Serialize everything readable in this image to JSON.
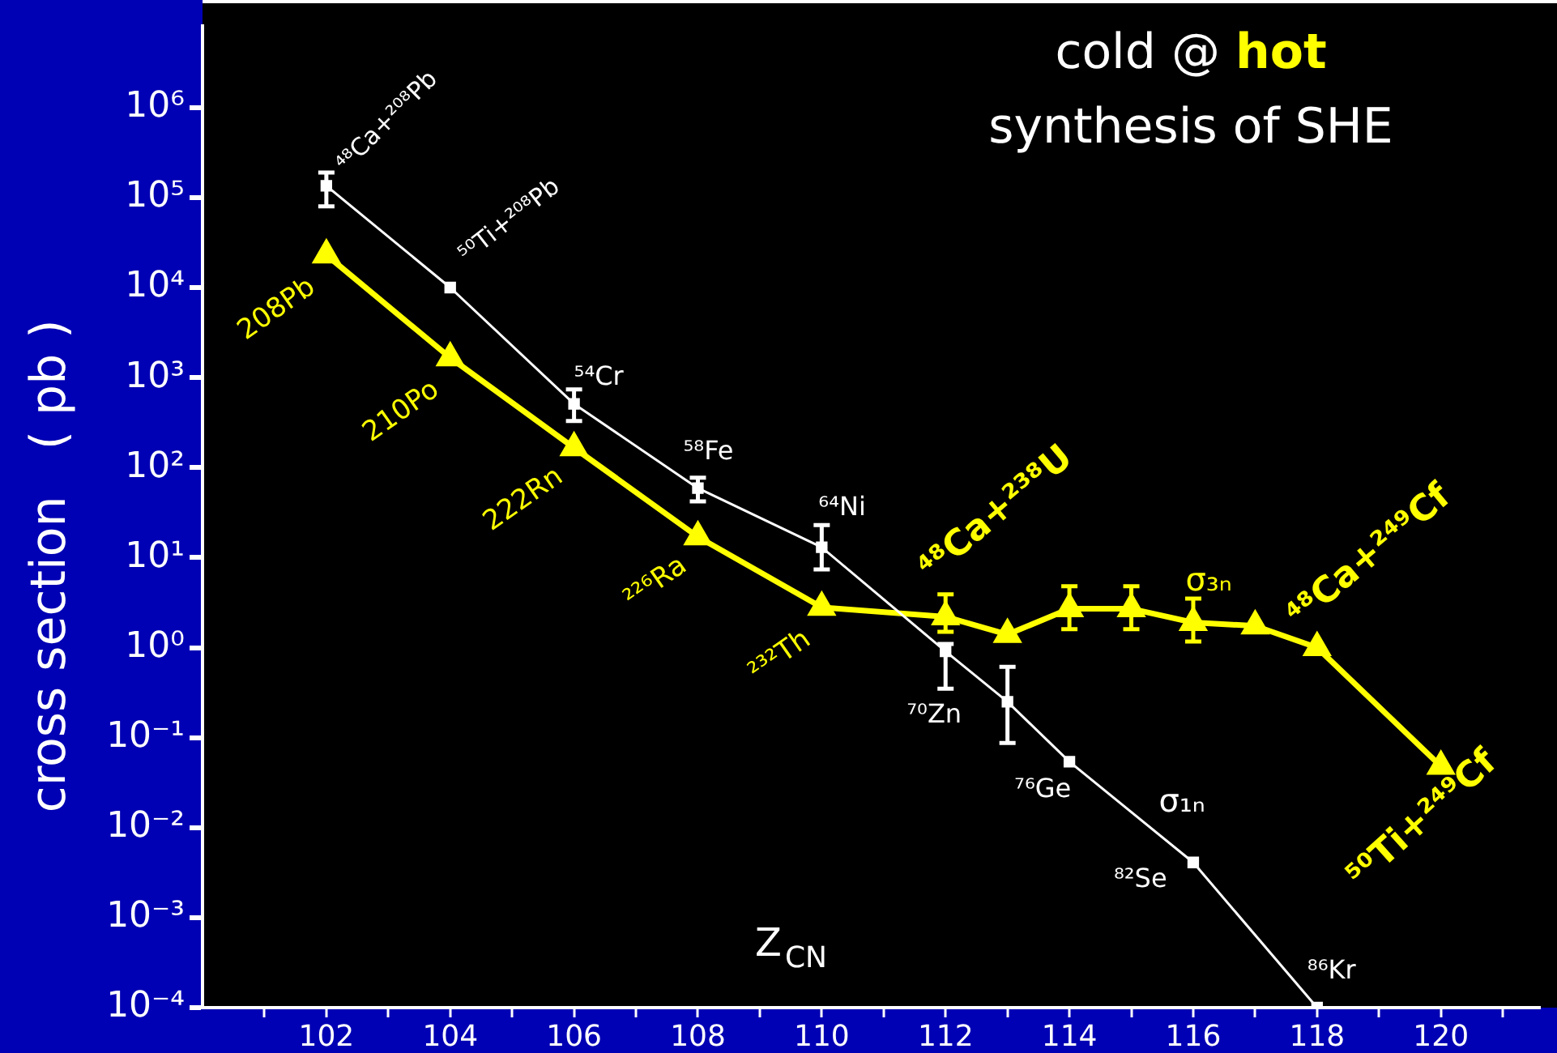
{
  "chart_data": {
    "type": "line",
    "title": "cold @ hot",
    "subtitle": "synthesis of SHE",
    "xlabel": "Z$_{CN}$",
    "ylabel": "cross section   ( pb )",
    "log": "y",
    "grid": false,
    "legend": false,
    "xlim": [
      100,
      121.6
    ],
    "xticks": [
      {
        "value": 101,
        "label": null
      },
      102,
      {
        "value": 103,
        "label": null
      },
      104,
      {
        "value": 105,
        "label": null
      },
      106,
      {
        "value": 107,
        "label": null
      },
      108,
      {
        "value": 109,
        "label": null
      },
      110,
      {
        "value": 111,
        "label": null
      },
      112,
      {
        "value": 113,
        "label": null
      },
      114,
      {
        "value": 115,
        "label": null
      },
      116,
      {
        "value": 117,
        "label": null
      },
      118,
      {
        "value": 119,
        "label": null
      },
      120,
      {
        "value": 121,
        "label": null
      }
    ],
    "ylim": [
      0.0001,
      8000000
    ],
    "yticks": [
      {
        "value": 0.0001,
        "label": "10⁻⁴"
      },
      {
        "value": 0.001,
        "label": "10⁻³"
      },
      {
        "value": 0.01,
        "label": "10⁻²"
      },
      {
        "value": 0.1,
        "label": "10⁻¹"
      },
      {
        "value": 1,
        "label": "10⁰"
      },
      {
        "value": 10,
        "label": "10¹"
      },
      {
        "value": 100,
        "label": "10²"
      },
      {
        "value": 1000,
        "label": "10³"
      },
      {
        "value": 10000,
        "label": "10⁴"
      },
      {
        "value": 100000,
        "label": "10⁵"
      },
      {
        "value": 1000000,
        "label": "10⁶"
      }
    ],
    "series": [
      {
        "name": "σ₁ₙ",
        "color": "#ffffff",
        "marker": "square",
        "x": [
          102,
          104,
          106,
          108,
          110,
          112,
          113,
          114,
          116,
          118
        ],
        "values": [
          135000,
          10000,
          510,
          59,
          13,
          0.91,
          0.25,
          0.054,
          0.0041,
          0.0001
        ],
        "errors": [
          [
            80000,
            190000
          ],
          null,
          [
            330,
            740
          ],
          [
            42,
            77
          ],
          [
            7.4,
            23
          ],
          [
            0.35,
            1.1
          ],
          [
            0.087,
            0.61
          ],
          null,
          null,
          null
        ]
      },
      {
        "name": "σ₃ₙ",
        "color": "#ffff00",
        "marker": "triangle",
        "x": [
          102,
          104,
          106,
          108,
          110,
          112,
          113,
          114,
          115,
          116,
          117,
          118,
          120
        ],
        "values": [
          23000,
          1660,
          166,
          17,
          2.8,
          2.2,
          1.4,
          2.7,
          2.7,
          1.9,
          1.74,
          1.0,
          0.048
        ],
        "errors": [
          null,
          null,
          null,
          null,
          null,
          [
            1.5,
            3.9
          ],
          null,
          [
            1.6,
            4.8
          ],
          [
            1.6,
            4.8
          ],
          [
            1.17,
            3.5
          ],
          null,
          null,
          null
        ]
      }
    ],
    "annotations": [
      {
        "text": "⁴⁸Ca+²⁰⁸Pb",
        "x": 102,
        "y": 135000
      },
      {
        "text": "⁵⁰Ti+²⁰⁸Pb",
        "x": 104,
        "y": 10000
      },
      {
        "text": "⁵⁴Cr",
        "x": 106,
        "y": 510
      },
      {
        "text": "⁵⁸Fe",
        "x": 108,
        "y": 59
      },
      {
        "text": "⁶⁴Ni",
        "x": 110,
        "y": 13
      },
      {
        "text": "⁷⁰Zn",
        "x": 112,
        "y": 0.91
      },
      {
        "text": "⁷⁶Ge",
        "x": 114,
        "y": 0.054
      },
      {
        "text": "⁸²Se",
        "x": 116,
        "y": 0.0041
      },
      {
        "text": "⁸⁶Kr",
        "x": 118,
        "y": 0.0001
      },
      {
        "text": "208Pb",
        "x": 102,
        "y": 23000
      },
      {
        "text": "210Po",
        "x": 104,
        "y": 1660
      },
      {
        "text": "222Rn",
        "x": 106,
        "y": 166
      },
      {
        "text": "²²⁶Ra",
        "x": 108,
        "y": 17
      },
      {
        "text": "²³²Th",
        "x": 110,
        "y": 2.8
      },
      {
        "text": "⁴⁸Ca+²³⁸U",
        "x": 112,
        "y": 2.2
      },
      {
        "text": "⁴⁸Ca+²⁴⁹Cf",
        "x": 118,
        "y": 1.0
      },
      {
        "text": "⁵⁰Ti+²⁴⁹Cf",
        "x": 120,
        "y": 0.048
      }
    ]
  }
}
